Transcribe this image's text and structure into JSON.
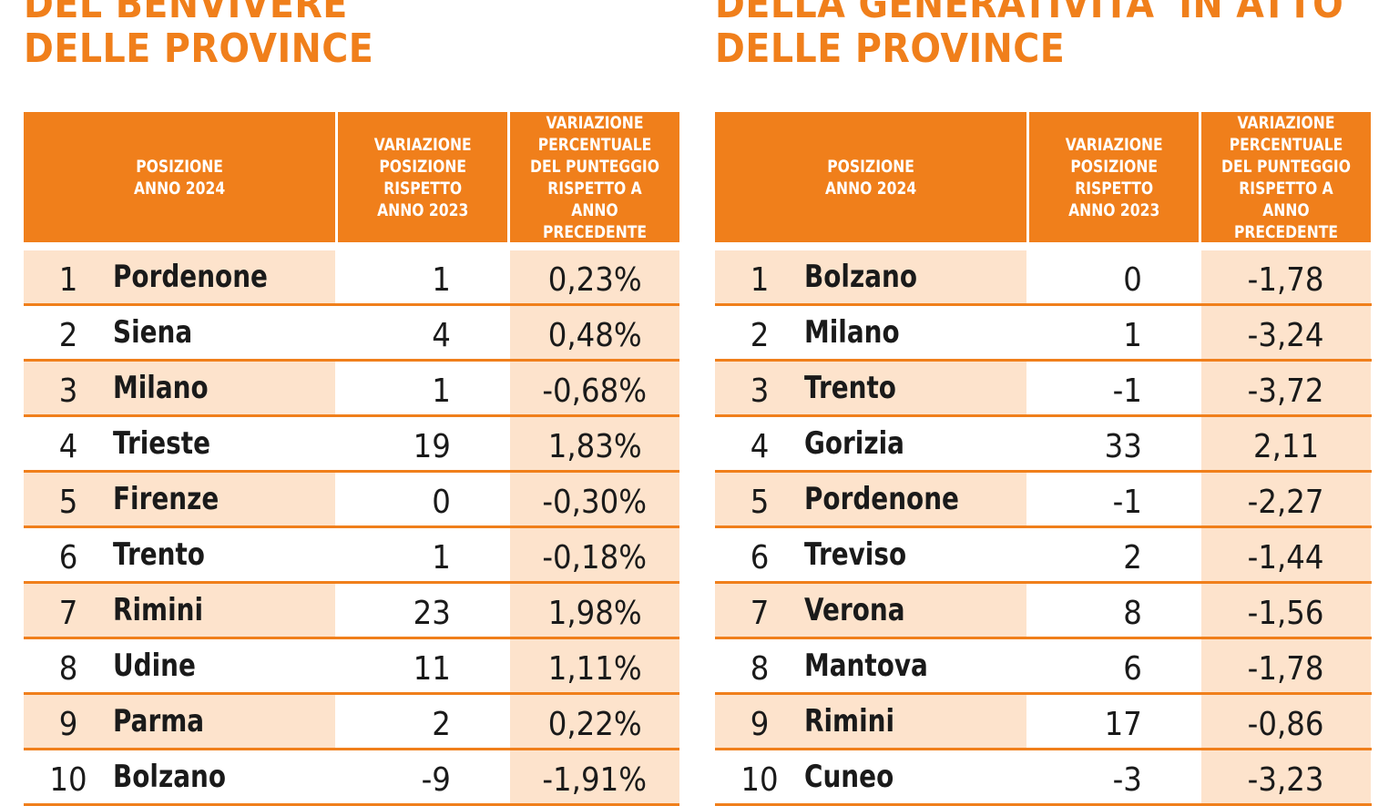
{
  "left": {
    "title_lines": [
      "DEL BENVIVERE",
      "DELLE PROVINCE"
    ],
    "headers": [
      "POSIZIONE\nANNO 2024",
      "VARIAZIONE\nPOSIZIONE\nRISPETTO\nANNO 2023",
      "VARIAZIONE\nPERCENTUALE\nDEL PUNTEGGIO\nRISPETTO A ANNO\nPRECEDENTE"
    ],
    "rows": [
      {
        "pos": "1",
        "name": "Pordenone",
        "var_pos": "1",
        "var_pct": "0,23%"
      },
      {
        "pos": "2",
        "name": "Siena",
        "var_pos": "4",
        "var_pct": "0,48%"
      },
      {
        "pos": "3",
        "name": "Milano",
        "var_pos": "1",
        "var_pct": "-0,68%"
      },
      {
        "pos": "4",
        "name": "Trieste",
        "var_pos": "19",
        "var_pct": "1,83%"
      },
      {
        "pos": "5",
        "name": "Firenze",
        "var_pos": "0",
        "var_pct": "-0,30%"
      },
      {
        "pos": "6",
        "name": "Trento",
        "var_pos": "1",
        "var_pct": "-0,18%"
      },
      {
        "pos": "7",
        "name": "Rimini",
        "var_pos": "23",
        "var_pct": "1,98%"
      },
      {
        "pos": "8",
        "name": "Udine",
        "var_pos": "11",
        "var_pct": "1,11%"
      },
      {
        "pos": "9",
        "name": "Parma",
        "var_pos": "2",
        "var_pct": "0,22%"
      },
      {
        "pos": "10",
        "name": "Bolzano",
        "var_pos": "-9",
        "var_pct": "-1,91%"
      }
    ]
  },
  "right": {
    "title_lines": [
      "DELLA GENERATIVITA' IN ATTO",
      "DELLE PROVINCE"
    ],
    "headers": [
      "POSIZIONE\nANNO 2024",
      "VARIAZIONE\nPOSIZIONE\nRISPETTO\nANNO 2023",
      "VARIAZIONE\nPERCENTUALE\nDEL PUNTEGGIO\nRISPETTO A ANNO\nPRECEDENTE"
    ],
    "rows": [
      {
        "pos": "1",
        "name": "Bolzano",
        "var_pos": "0",
        "var_pct": "-1,78"
      },
      {
        "pos": "2",
        "name": "Milano",
        "var_pos": "1",
        "var_pct": "-3,24"
      },
      {
        "pos": "3",
        "name": "Trento",
        "var_pos": "-1",
        "var_pct": "-3,72"
      },
      {
        "pos": "4",
        "name": "Gorizia",
        "var_pos": "33",
        "var_pct": "2,11"
      },
      {
        "pos": "5",
        "name": "Pordenone",
        "var_pos": "-1",
        "var_pct": "-2,27"
      },
      {
        "pos": "6",
        "name": "Treviso",
        "var_pos": "2",
        "var_pct": "-1,44"
      },
      {
        "pos": "7",
        "name": "Verona",
        "var_pos": "8",
        "var_pct": "-1,56"
      },
      {
        "pos": "8",
        "name": "Mantova",
        "var_pos": "6",
        "var_pct": "-1,78"
      },
      {
        "pos": "9",
        "name": "Rimini",
        "var_pos": "17",
        "var_pct": "-0,86"
      },
      {
        "pos": "10",
        "name": "Cuneo",
        "var_pos": "-3",
        "var_pct": "-3,23"
      }
    ]
  },
  "colors": {
    "accent": "#f07f1b",
    "row_tint": "#fde3cc",
    "text": "#1a1a1a"
  }
}
